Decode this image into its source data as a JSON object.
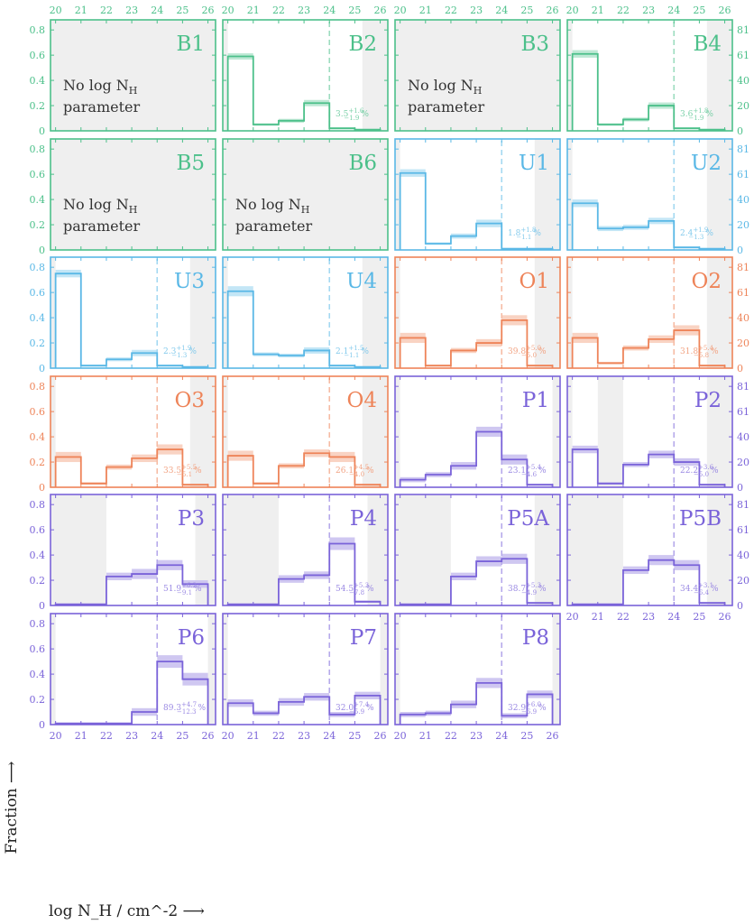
{
  "chart_data": {
    "type": "bar",
    "xlabel": "log N_H / cm^-2 ⟶",
    "ylabel": "Fraction ⟶",
    "x_ticks": [
      "20",
      "21",
      "22",
      "23",
      "24",
      "25",
      "26"
    ],
    "x_range": [
      19.8,
      26.3
    ],
    "left_y_ticks": [
      "0",
      "0.2",
      "0.4",
      "0.6",
      "0.8"
    ],
    "left_y_range": [
      0,
      0.88
    ],
    "right_y_ticks": [
      "0",
      "20",
      "40",
      "61",
      "81"
    ],
    "bin_edges": [
      20,
      21,
      22,
      23,
      24,
      25,
      26
    ],
    "threshold": 24,
    "no_log_text_1": "No log N",
    "no_log_sub": "H",
    "no_log_text_2": "parameter",
    "colors": {
      "B": "#4cc08a",
      "U": "#5ab8e6",
      "O": "#ee8459",
      "P": "#7a63d9"
    },
    "panels": [
      {
        "label": "B1",
        "family": "B",
        "nolog": true,
        "shade": [
          [
            19.8,
            26.3
          ]
        ]
      },
      {
        "label": "B2",
        "family": "B",
        "shade": [
          [
            19.8,
            20
          ],
          [
            25.3,
            26.3
          ]
        ],
        "values": [
          0.59,
          0.05,
          0.08,
          0.22,
          0.02,
          0.01
        ],
        "err": [
          0.025,
          0.01,
          0.015,
          0.025,
          0.008,
          0.005
        ],
        "pct": "3.5",
        "pct_up": "+1.6",
        "pct_dn": "−1.9"
      },
      {
        "label": "B3",
        "family": "B",
        "nolog": true,
        "shade": [
          [
            19.8,
            26.3
          ]
        ]
      },
      {
        "label": "B4",
        "family": "B",
        "shade": [
          [
            19.8,
            20
          ],
          [
            25.3,
            26.3
          ]
        ],
        "values": [
          0.61,
          0.05,
          0.09,
          0.2,
          0.02,
          0.01
        ],
        "err": [
          0.03,
          0.01,
          0.015,
          0.025,
          0.008,
          0.005
        ],
        "pct": "3.6",
        "pct_up": "+1.8",
        "pct_dn": "−1.9"
      },
      {
        "label": "B5",
        "family": "B",
        "nolog": true,
        "shade": [
          [
            19.8,
            26.3
          ]
        ]
      },
      {
        "label": "B6",
        "family": "B",
        "nolog": true,
        "shade": [
          [
            19.8,
            26.3
          ]
        ]
      },
      {
        "label": "U1",
        "family": "U",
        "shade": [
          [
            19.8,
            20
          ],
          [
            25.3,
            26.3
          ]
        ],
        "values": [
          0.61,
          0.05,
          0.11,
          0.21,
          0.01,
          0.01
        ],
        "err": [
          0.03,
          0.01,
          0.02,
          0.03,
          0.006,
          0.005
        ],
        "pct": "1.8",
        "pct_up": "+1.8",
        "pct_dn": "−1.1"
      },
      {
        "label": "U2",
        "family": "U",
        "shade": [
          [
            19.8,
            20
          ],
          [
            25.3,
            26.3
          ]
        ],
        "values": [
          0.37,
          0.17,
          0.18,
          0.23,
          0.02,
          0.01
        ],
        "err": [
          0.03,
          0.02,
          0.02,
          0.025,
          0.008,
          0.005
        ],
        "pct": "2.4",
        "pct_up": "+1.9",
        "pct_dn": "−1.3"
      },
      {
        "label": "U3",
        "family": "U",
        "shade": [
          [
            19.8,
            20
          ],
          [
            25.3,
            26.3
          ]
        ],
        "values": [
          0.75,
          0.02,
          0.07,
          0.12,
          0.02,
          0.01
        ],
        "err": [
          0.03,
          0.008,
          0.015,
          0.025,
          0.008,
          0.005
        ],
        "pct": "2.3",
        "pct_up": "+1.9",
        "pct_dn": "−1.3"
      },
      {
        "label": "U4",
        "family": "U",
        "shade": [
          [
            19.8,
            20
          ],
          [
            25.3,
            26.3
          ]
        ],
        "values": [
          0.61,
          0.11,
          0.1,
          0.14,
          0.02,
          0.01
        ],
        "err": [
          0.04,
          0.015,
          0.015,
          0.025,
          0.008,
          0.005
        ],
        "pct": "2.1",
        "pct_up": "+1.5",
        "pct_dn": "−1.1"
      },
      {
        "label": "O1",
        "family": "O",
        "shade": [
          [
            19.8,
            20
          ],
          [
            25.3,
            26.3
          ]
        ],
        "values": [
          0.24,
          0.02,
          0.14,
          0.2,
          0.38,
          0.02
        ],
        "err": [
          0.04,
          0.008,
          0.02,
          0.03,
          0.04,
          0.008
        ],
        "pct": "39.8",
        "pct_up": "+5.0",
        "pct_dn": "−5.0"
      },
      {
        "label": "O2",
        "family": "O",
        "shade": [
          [
            19.8,
            20
          ],
          [
            25.3,
            26.3
          ]
        ],
        "values": [
          0.24,
          0.04,
          0.16,
          0.23,
          0.3,
          0.02
        ],
        "err": [
          0.04,
          0.01,
          0.02,
          0.03,
          0.04,
          0.008
        ],
        "pct": "31.8",
        "pct_up": "+5.4",
        "pct_dn": "−5.8"
      },
      {
        "label": "O3",
        "family": "O",
        "shade": [
          [
            19.8,
            20
          ],
          [
            25.3,
            26.3
          ]
        ],
        "values": [
          0.24,
          0.03,
          0.16,
          0.23,
          0.3,
          0.02
        ],
        "err": [
          0.04,
          0.01,
          0.02,
          0.03,
          0.04,
          0.008
        ],
        "pct": "33.5",
        "pct_up": "+5.5",
        "pct_dn": "−5.1"
      },
      {
        "label": "O4",
        "family": "O",
        "shade": [
          [
            19.8,
            20
          ],
          [
            25.3,
            26.3
          ]
        ],
        "values": [
          0.25,
          0.03,
          0.17,
          0.27,
          0.24,
          0.02
        ],
        "err": [
          0.04,
          0.01,
          0.02,
          0.03,
          0.04,
          0.008
        ],
        "pct": "26.1",
        "pct_up": "+4.5",
        "pct_dn": "−4.0"
      },
      {
        "label": "P1",
        "family": "P",
        "shade": [
          [
            19.8,
            20
          ],
          [
            26,
            26.3
          ]
        ],
        "values": [
          0.06,
          0.1,
          0.17,
          0.44,
          0.22,
          0.02
        ],
        "err": [
          0.02,
          0.02,
          0.03,
          0.04,
          0.04,
          0.008
        ],
        "pct": "23.1",
        "pct_up": "+5.4",
        "pct_dn": "−4.6"
      },
      {
        "label": "P2",
        "family": "P",
        "shade": [
          [
            19.8,
            20
          ],
          [
            21,
            22
          ],
          [
            25.3,
            26.3
          ]
        ],
        "values": [
          0.3,
          0.03,
          0.18,
          0.26,
          0.2,
          0.02
        ],
        "err": [
          0.03,
          0.01,
          0.02,
          0.03,
          0.03,
          0.008
        ],
        "pct": "22.2",
        "pct_up": "+3.6",
        "pct_dn": "−5.0"
      },
      {
        "label": "P3",
        "family": "P",
        "shade": [
          [
            19.8,
            22
          ],
          [
            25.5,
            26.3
          ]
        ],
        "values": [
          0.01,
          0.01,
          0.23,
          0.25,
          0.32,
          0.17
        ],
        "err": [
          0.003,
          0.003,
          0.03,
          0.04,
          0.04,
          0.03
        ],
        "pct": "51.9",
        "pct_up": "+6.2",
        "pct_dn": "−9.1"
      },
      {
        "label": "P4",
        "family": "P",
        "shade": [
          [
            19.8,
            22
          ],
          [
            25.5,
            26.3
          ]
        ],
        "values": [
          0.01,
          0.01,
          0.21,
          0.24,
          0.49,
          0.03
        ],
        "err": [
          0.003,
          0.003,
          0.03,
          0.03,
          0.05,
          0.01
        ],
        "pct": "54.5",
        "pct_up": "+5.3",
        "pct_dn": "−7.8"
      },
      {
        "label": "P5A",
        "family": "P",
        "shade": [
          [
            19.8,
            22
          ],
          [
            25.3,
            26.3
          ]
        ],
        "values": [
          0.01,
          0.01,
          0.23,
          0.35,
          0.37,
          0.02
        ],
        "err": [
          0.003,
          0.003,
          0.03,
          0.04,
          0.04,
          0.008
        ],
        "pct": "38.7",
        "pct_up": "+5.3",
        "pct_dn": "−4.9"
      },
      {
        "label": "P5B",
        "family": "P",
        "shade": [
          [
            19.8,
            22
          ],
          [
            25.3,
            26.3
          ]
        ],
        "values": [
          0.01,
          0.01,
          0.28,
          0.36,
          0.32,
          0.02
        ],
        "err": [
          0.003,
          0.003,
          0.03,
          0.04,
          0.04,
          0.008
        ],
        "pct": "34.4",
        "pct_up": "+3.1",
        "pct_dn": "−6.4"
      },
      {
        "label": "P6",
        "family": "P",
        "shade": [
          [
            19.8,
            20
          ],
          [
            26,
            26.3
          ]
        ],
        "values": [
          0.01,
          0.01,
          0.01,
          0.1,
          0.5,
          0.36
        ],
        "err": [
          0.003,
          0.003,
          0.003,
          0.03,
          0.05,
          0.05
        ],
        "pct": "89.3",
        "pct_up": "+4.7",
        "pct_dn": "−12.3"
      },
      {
        "label": "P7",
        "family": "P",
        "shade": [
          [
            19.8,
            20
          ],
          [
            26,
            26.3
          ]
        ],
        "values": [
          0.17,
          0.09,
          0.18,
          0.22,
          0.08,
          0.23
        ],
        "err": [
          0.03,
          0.02,
          0.03,
          0.03,
          0.02,
          0.03
        ],
        "pct": "32.0",
        "pct_up": "+7.4",
        "pct_dn": "−5.9"
      },
      {
        "label": "P8",
        "family": "P",
        "shade": [
          [
            19.8,
            20
          ],
          [
            26,
            26.3
          ]
        ],
        "values": [
          0.08,
          0.09,
          0.16,
          0.33,
          0.07,
          0.24
        ],
        "err": [
          0.02,
          0.02,
          0.03,
          0.04,
          0.02,
          0.03
        ],
        "pct": "32.9",
        "pct_up": "+6.0",
        "pct_dn": "−6.9"
      }
    ]
  }
}
